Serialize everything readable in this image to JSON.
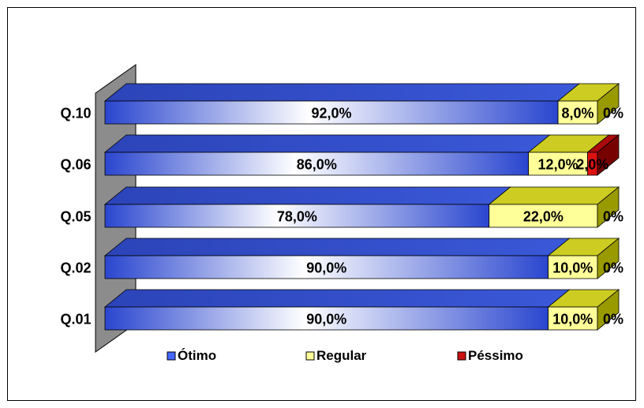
{
  "chart_data": {
    "type": "bar",
    "orientation": "horizontal",
    "stacked": true,
    "percent_stacked": true,
    "categories": [
      "Q.10",
      "Q.06",
      "Q.05",
      "Q.02",
      "Q.01"
    ],
    "series": [
      {
        "name": "Ótimo",
        "values": [
          92,
          86,
          78,
          90,
          90
        ],
        "labels": [
          "92,0%",
          "86,0%",
          "78,0%",
          "90,0%",
          "90,0%"
        ],
        "color": "#3355dd"
      },
      {
        "name": "Regular",
        "values": [
          8,
          12,
          22,
          10,
          10
        ],
        "labels": [
          "8,0%",
          "12,0%",
          "22,0%",
          "10,0%",
          "10,0%"
        ],
        "color": "#ffff99"
      },
      {
        "name": "Péssimo",
        "values": [
          0,
          2,
          0,
          0,
          0
        ],
        "labels": [
          "0%",
          "2,0%",
          "0%",
          "0%",
          "0%"
        ],
        "color": "#cc1111"
      }
    ],
    "xlim": [
      0,
      100
    ],
    "legend_position": "bottom",
    "grid": false,
    "three_d": true
  }
}
